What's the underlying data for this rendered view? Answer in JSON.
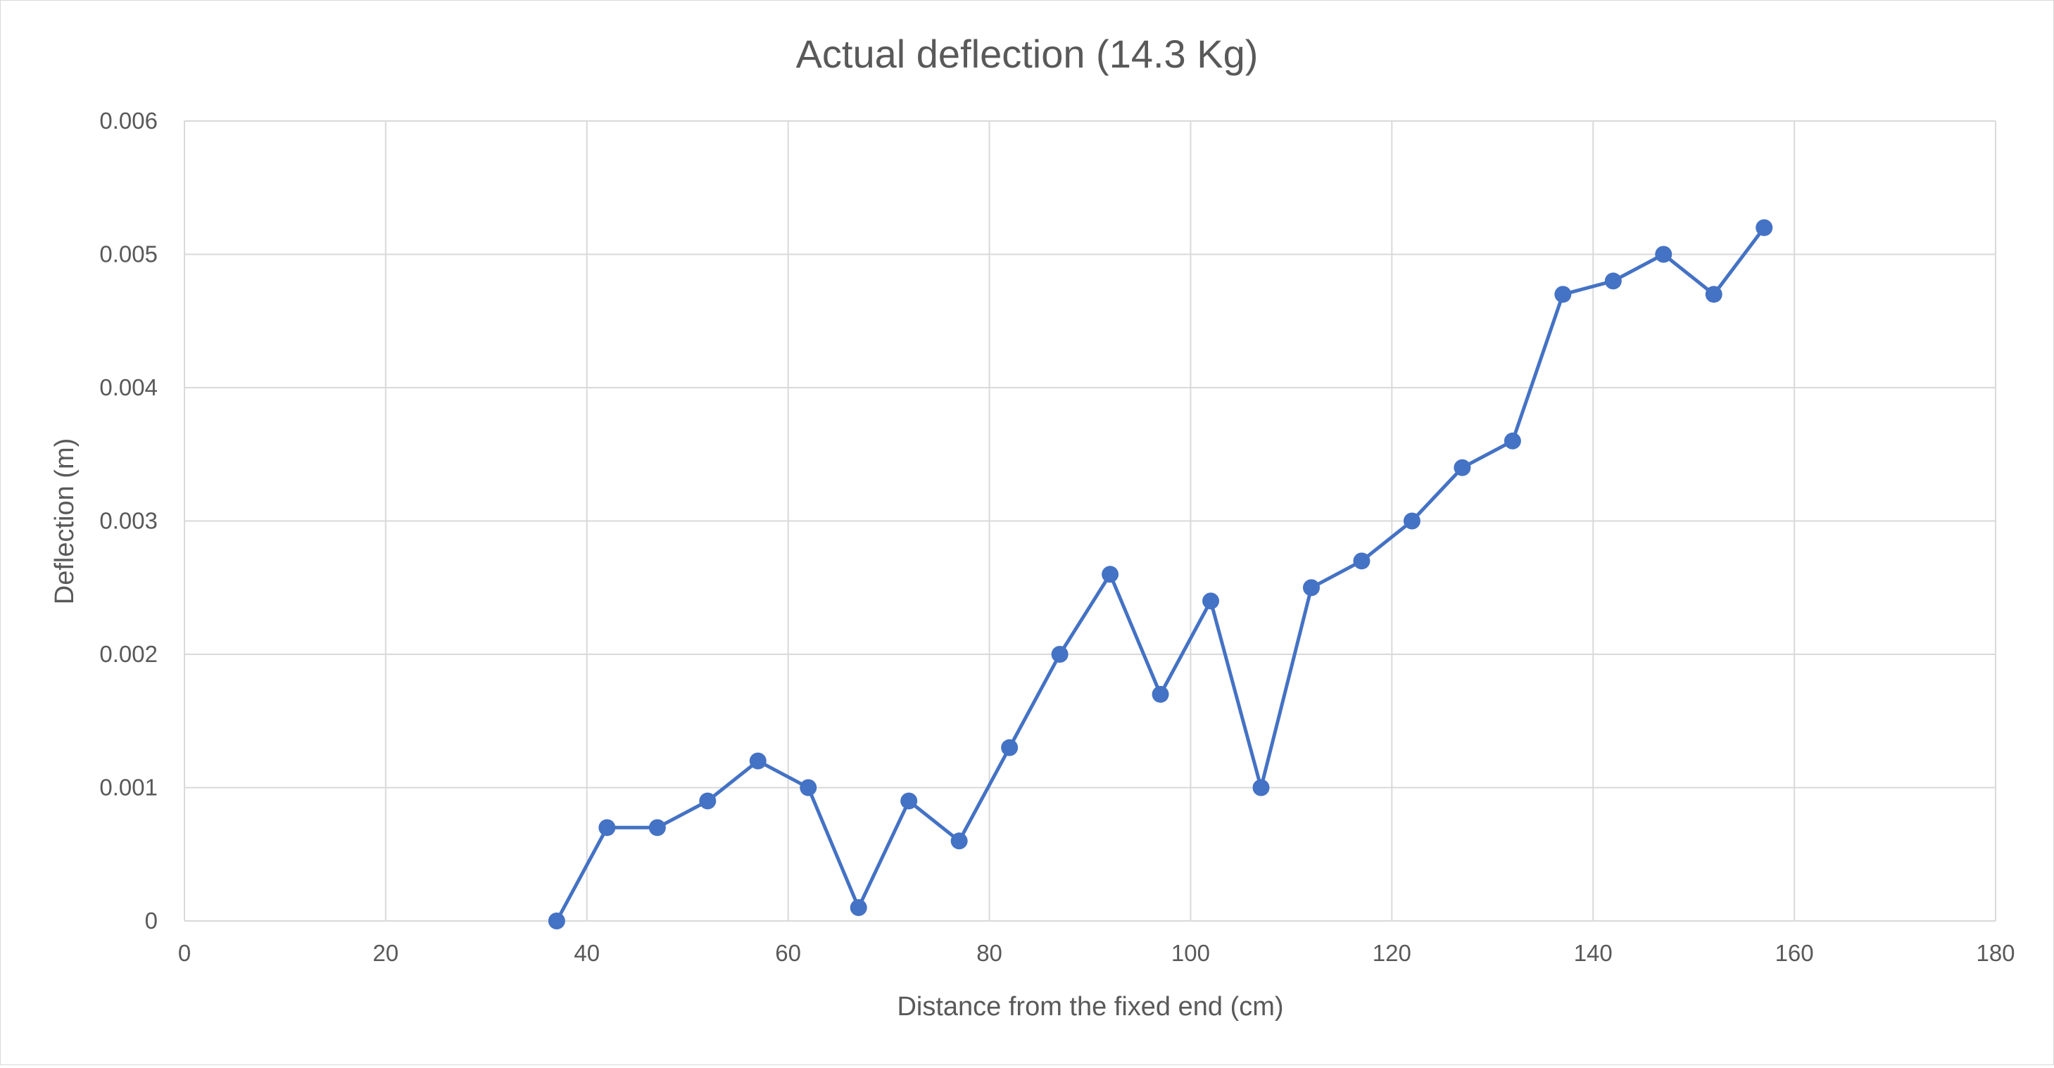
{
  "chart_data": {
    "type": "scatter",
    "title": "Actual deflection (14.3 Kg)",
    "xlabel": "Distance from the fixed end (cm)",
    "ylabel": "Deflection (m)",
    "xlim": [
      0,
      180
    ],
    "ylim": [
      0,
      0.006
    ],
    "x_ticks": [
      "0",
      "20",
      "40",
      "60",
      "80",
      "100",
      "120",
      "140",
      "160",
      "180"
    ],
    "y_ticks": [
      "0",
      "0.001",
      "0.002",
      "0.003",
      "0.004",
      "0.005",
      "0.006"
    ],
    "grid": true,
    "series": [
      {
        "x": [
          37,
          42,
          47,
          52,
          57,
          62,
          67,
          72,
          77,
          82,
          87,
          92,
          97,
          102,
          107,
          112,
          117,
          122,
          127,
          132,
          137,
          142,
          147,
          152,
          157
        ],
        "y": [
          0,
          0.0007,
          0.0007,
          0.0009,
          0.0012,
          0.001,
          0.0001,
          0.0009,
          0.0006,
          0.0013,
          0.002,
          0.0026,
          0.0017,
          0.0024,
          0.001,
          0.0025,
          0.0027,
          0.003,
          0.0034,
          0.0036,
          0.0047,
          0.0048,
          0.005,
          0.0047,
          0.0052
        ],
        "color": "#4472c4",
        "markers": true,
        "lines": true
      }
    ]
  }
}
